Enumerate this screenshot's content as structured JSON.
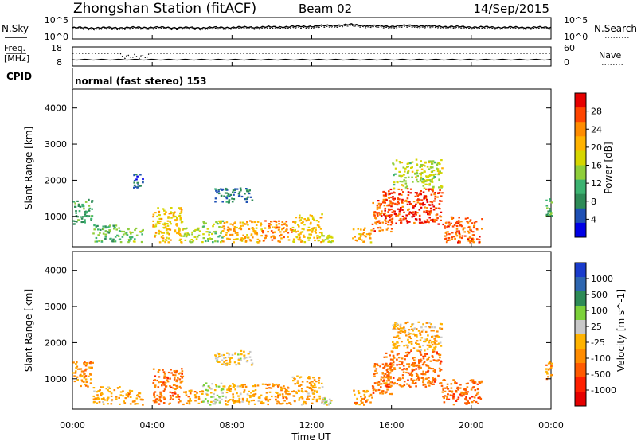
{
  "header": {
    "station": "Zhongshan Station (fitACF)",
    "beam": "Beam 02",
    "date": "14/Sep/2015"
  },
  "status_panel": {
    "nsky_label": "N.Sky",
    "nsearch_label": "N.Search",
    "noise_ticks_left": [
      "10^5",
      "10^0"
    ],
    "noise_ticks_right": [
      "10^5",
      "10^0"
    ],
    "freq_label_1": "Freq.",
    "freq_label_2": "[MHz]",
    "freq_ticks": [
      "18",
      "8"
    ],
    "nave_label": "Nave",
    "nave_ticks": [
      "60",
      "0"
    ],
    "cpid_label": "CPID",
    "cpid_text": "normal (fast stereo) 153"
  },
  "axes": {
    "ylabel": "Slant Range [km]",
    "yticks": [
      "4000",
      "3000",
      "2000",
      "1000"
    ],
    "xlabel": "Time UT",
    "xticks": [
      "00:00",
      "04:00",
      "08:00",
      "12:00",
      "16:00",
      "20:00",
      "00:00"
    ]
  },
  "power_colorbar": {
    "label": "Power [dB]",
    "ticks": [
      "28",
      "24",
      "20",
      "16",
      "12",
      "8",
      "4"
    ],
    "colors": [
      "#e60000",
      "#ff4500",
      "#ff8c00",
      "#ffb300",
      "#d6d600",
      "#8fce3a",
      "#3cb371",
      "#2e8b57",
      "#1e50b4",
      "#0000e6"
    ]
  },
  "velocity_colorbar": {
    "label": "Velocity [m s^-1]",
    "ticks": [
      "1000",
      "500",
      "100",
      "25",
      "-25",
      "-100",
      "-500",
      "-1000"
    ],
    "colors": [
      "#1a3ccc",
      "#2e66b0",
      "#2e8b57",
      "#7cd13a",
      "#c8c8c8",
      "#ffb300",
      "#ff8c00",
      "#ff5a00",
      "#ff2000",
      "#e60000"
    ]
  },
  "chart_data": [
    {
      "type": "line",
      "title": "Zhongshan Station (fitACF) Beam 02 14/Sep/2015",
      "series": [
        {
          "name": "N.Sky"
        },
        {
          "name": "N.Search"
        }
      ],
      "x": [
        0,
        2,
        4,
        6,
        8,
        10,
        12,
        13,
        14,
        15,
        16,
        17,
        18,
        19,
        20,
        22,
        24
      ],
      "values_log10": [
        2.6,
        2.6,
        2.7,
        2.6,
        2.7,
        2.8,
        3.0,
        3.2,
        3.4,
        3.1,
        3.0,
        3.2,
        3.0,
        2.9,
        2.8,
        2.7,
        2.7
      ],
      "ylim_log10": [
        0,
        5
      ]
    },
    {
      "type": "line",
      "series": [
        {
          "name": "Freq.",
          "values_mhz": 10.5
        },
        {
          "name": "Nave",
          "values": 35
        }
      ],
      "xlim": [
        0,
        24
      ]
    },
    {
      "type": "heatmap",
      "xlabel": "Time UT",
      "ylabel": "Slant Range [km]",
      "xlim": [
        0,
        24
      ],
      "ylim": [
        180,
        4500
      ],
      "colorbar": "Power [dB]",
      "zlim": [
        0,
        32
      ],
      "patches": [
        {
          "t": [
            0.0,
            1.0
          ],
          "r": [
            800,
            1500
          ],
          "z": 10
        },
        {
          "t": [
            1.0,
            2.5
          ],
          "r": [
            300,
            800
          ],
          "z": 12
        },
        {
          "t": [
            2.5,
            3.5
          ],
          "r": [
            300,
            700
          ],
          "z": 14
        },
        {
          "t": [
            3.0,
            3.5
          ],
          "r": [
            1800,
            2200
          ],
          "z": 6
        },
        {
          "t": [
            4.0,
            5.5
          ],
          "r": [
            300,
            1300
          ],
          "z": 20
        },
        {
          "t": [
            5.5,
            6.5
          ],
          "r": [
            300,
            700
          ],
          "z": 16
        },
        {
          "t": [
            6.5,
            7.5
          ],
          "r": [
            300,
            900
          ],
          "z": 14
        },
        {
          "t": [
            7.0,
            9.0
          ],
          "r": [
            1400,
            1800
          ],
          "z": 7
        },
        {
          "t": [
            7.5,
            9.5
          ],
          "r": [
            300,
            900
          ],
          "z": 22
        },
        {
          "t": [
            9.5,
            11.0
          ],
          "r": [
            300,
            900
          ],
          "z": 24
        },
        {
          "t": [
            11.0,
            12.5
          ],
          "r": [
            300,
            1100
          ],
          "z": 20
        },
        {
          "t": [
            12.5,
            13.0
          ],
          "r": [
            300,
            500
          ],
          "z": 16
        },
        {
          "t": [
            14.0,
            15.0
          ],
          "r": [
            300,
            700
          ],
          "z": 22
        },
        {
          "t": [
            15.0,
            16.0
          ],
          "r": [
            600,
            1500
          ],
          "z": 26
        },
        {
          "t": [
            15.5,
            18.5
          ],
          "r": [
            800,
            1800
          ],
          "z": 28
        },
        {
          "t": [
            16.0,
            18.5
          ],
          "r": [
            1800,
            2600
          ],
          "z": 16
        },
        {
          "t": [
            18.5,
            20.5
          ],
          "r": [
            300,
            1000
          ],
          "z": 26
        },
        {
          "t": [
            23.7,
            24.0
          ],
          "r": [
            1000,
            1500
          ],
          "z": 12
        }
      ]
    },
    {
      "type": "heatmap",
      "xlabel": "Time UT",
      "ylabel": "Slant Range [km]",
      "xlim": [
        0,
        24
      ],
      "ylim": [
        180,
        4500
      ],
      "colorbar": "Velocity [m s^-1]",
      "zlim": [
        -1200,
        1200
      ],
      "patches": [
        {
          "t": [
            0.0,
            1.0
          ],
          "r": [
            800,
            1500
          ],
          "z": -300
        },
        {
          "t": [
            1.0,
            2.5
          ],
          "r": [
            300,
            800
          ],
          "z": -200
        },
        {
          "t": [
            2.5,
            3.5
          ],
          "r": [
            300,
            700
          ],
          "z": -300
        },
        {
          "t": [
            4.0,
            5.5
          ],
          "r": [
            300,
            1300
          ],
          "z": -500
        },
        {
          "t": [
            5.5,
            6.5
          ],
          "r": [
            300,
            700
          ],
          "z": -300
        },
        {
          "t": [
            6.5,
            7.5
          ],
          "r": [
            300,
            900
          ],
          "z": 200
        },
        {
          "t": [
            7.0,
            9.0
          ],
          "r": [
            1400,
            1800
          ],
          "z": 0
        },
        {
          "t": [
            7.5,
            9.5
          ],
          "r": [
            300,
            900
          ],
          "z": -200
        },
        {
          "t": [
            9.5,
            11.0
          ],
          "r": [
            300,
            900
          ],
          "z": -300
        },
        {
          "t": [
            11.0,
            12.5
          ],
          "r": [
            300,
            1100
          ],
          "z": -200
        },
        {
          "t": [
            12.5,
            13.0
          ],
          "r": [
            300,
            500
          ],
          "z": 150
        },
        {
          "t": [
            14.0,
            15.0
          ],
          "r": [
            300,
            700
          ],
          "z": -300
        },
        {
          "t": [
            15.0,
            16.0
          ],
          "r": [
            600,
            1500
          ],
          "z": -500
        },
        {
          "t": [
            15.5,
            18.5
          ],
          "r": [
            800,
            1800
          ],
          "z": -500
        },
        {
          "t": [
            16.0,
            18.5
          ],
          "r": [
            1800,
            2600
          ],
          "z": -200
        },
        {
          "t": [
            18.5,
            20.5
          ],
          "r": [
            300,
            1000
          ],
          "z": -500
        },
        {
          "t": [
            23.7,
            24.0
          ],
          "r": [
            1000,
            1500
          ],
          "z": -300
        }
      ]
    }
  ]
}
